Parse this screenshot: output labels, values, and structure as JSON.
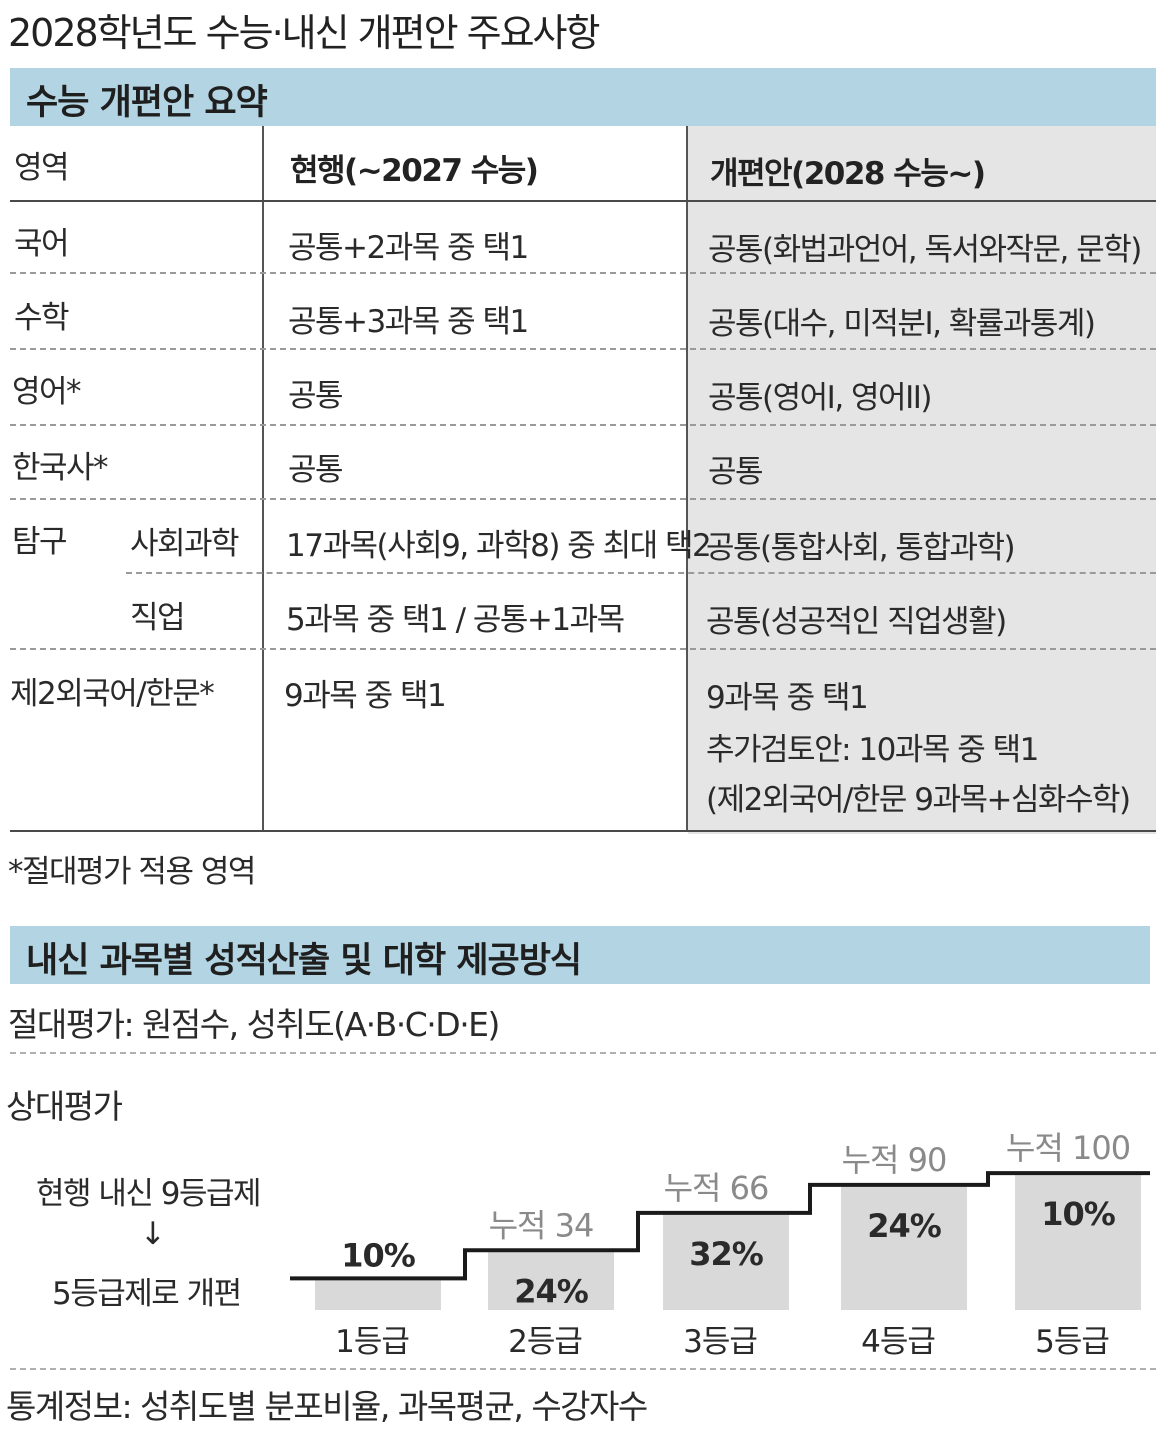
{
  "title": "2028학년도 수능·내신 개편안 주요사항",
  "suneung": {
    "section_title": "수능 개편안 요약",
    "headers": {
      "area": "영역",
      "current": "현행(~2027 수능)",
      "reform": "개편안(2028 수능~)"
    },
    "rows": [
      {
        "area": "국어",
        "current": "공통+2과목 중 택1",
        "reform": "공통(화법과언어, 독서와작문, 문학)"
      },
      {
        "area": "수학",
        "current": "공통+3과목 중 택1",
        "reform": "공통(대수, 미적분I, 확률과통계)"
      },
      {
        "area": "영어*",
        "current": "공통",
        "reform": "공통(영어I, 영어II)"
      },
      {
        "area": "한국사*",
        "current": "공통",
        "reform": "공통"
      },
      {
        "area": "탐구",
        "sub": "사회과학",
        "current": "17과목(사회9, 과학8) 중 최대 택2",
        "reform": "공통(통합사회, 통합과학)"
      },
      {
        "area": "",
        "sub": "직업",
        "current": "5과목 중 택1   / 공통+1과목",
        "reform": "공통(성공적인 직업생활)"
      },
      {
        "area": "제2외국어/한문*",
        "current": "9과목 중 택1",
        "reform": "9과목 중 택1",
        "reform_line2": "추가검토안: 10과목 중 택1",
        "reform_line3": "(제2외국어/한문 9과목+심화수학)"
      }
    ],
    "footnote": "*절대평가 적용 영역"
  },
  "naesin": {
    "section_title": "내신 과목별 성적산출 및 대학 제공방식",
    "absolute": "절대평가: 원점수, 성취도(A·B·C·D·E)",
    "relative_label": "상대평가",
    "change_line1": "현행 내신 9등급제",
    "arrow": "↓",
    "change_line2": "5등급제로 개편",
    "stats": "통계정보: 성취도별 분포비율, 과목평균, 수강자수"
  },
  "chart_data": {
    "type": "bar",
    "categories": [
      "1등급",
      "2등급",
      "3등급",
      "4등급",
      "5등급"
    ],
    "values": [
      10,
      24,
      32,
      24,
      10
    ],
    "value_labels": [
      "10%",
      "24%",
      "32%",
      "24%",
      "10%"
    ],
    "cumulative": [
      10,
      34,
      66,
      90,
      100
    ],
    "cumulative_labels": [
      "",
      "누적 34",
      "누적 66",
      "누적 90",
      "누적 100"
    ],
    "unit": "%",
    "bar_color": "#d9d9d9",
    "step_line_color": "#1a1a1a"
  }
}
